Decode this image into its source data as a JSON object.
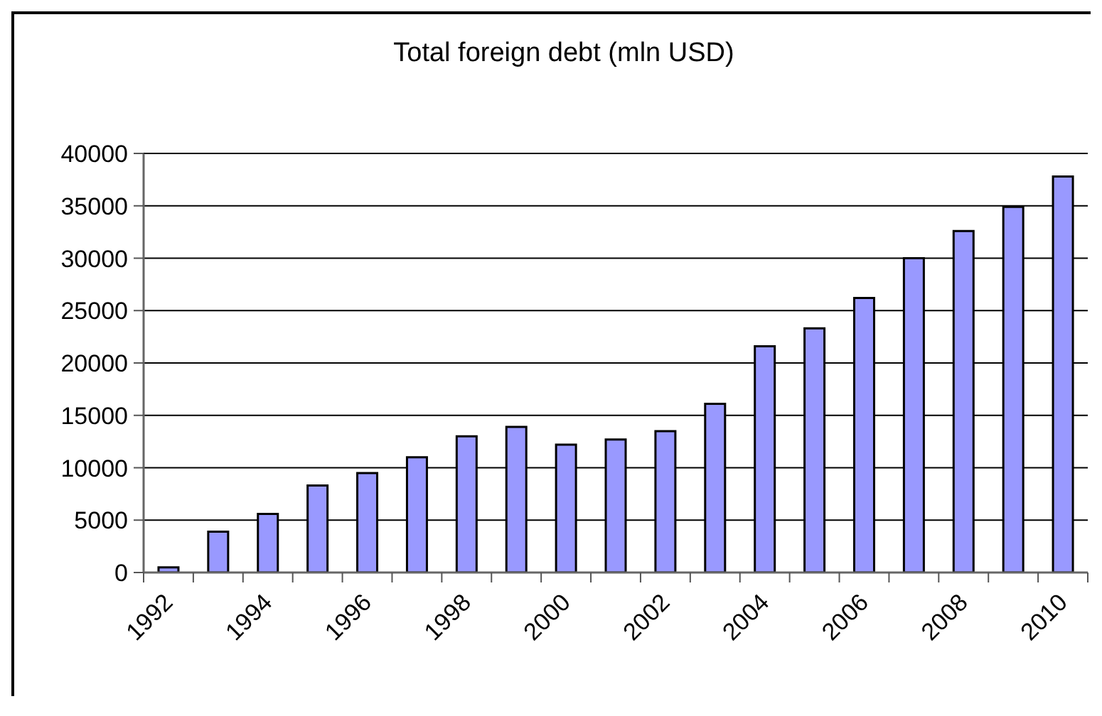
{
  "chart_data": {
    "type": "bar",
    "title": "Total foreign debt (mln USD)",
    "categories": [
      "1992",
      null,
      "1994",
      null,
      "1996",
      null,
      "1998",
      null,
      "2000",
      null,
      "2002",
      null,
      "2004",
      null,
      "2006",
      null,
      "2008",
      null,
      "2010"
    ],
    "values": [
      500,
      3900,
      5600,
      8300,
      9500,
      11000,
      13000,
      13900,
      12200,
      12700,
      13500,
      16100,
      21600,
      23300,
      26200,
      30000,
      32600,
      34900,
      37800
    ],
    "color": "#9999ff",
    "ylim": [
      0,
      40000
    ],
    "yticks": [
      0,
      5000,
      10000,
      15000,
      20000,
      25000,
      30000,
      35000,
      40000
    ],
    "grid": "y"
  }
}
